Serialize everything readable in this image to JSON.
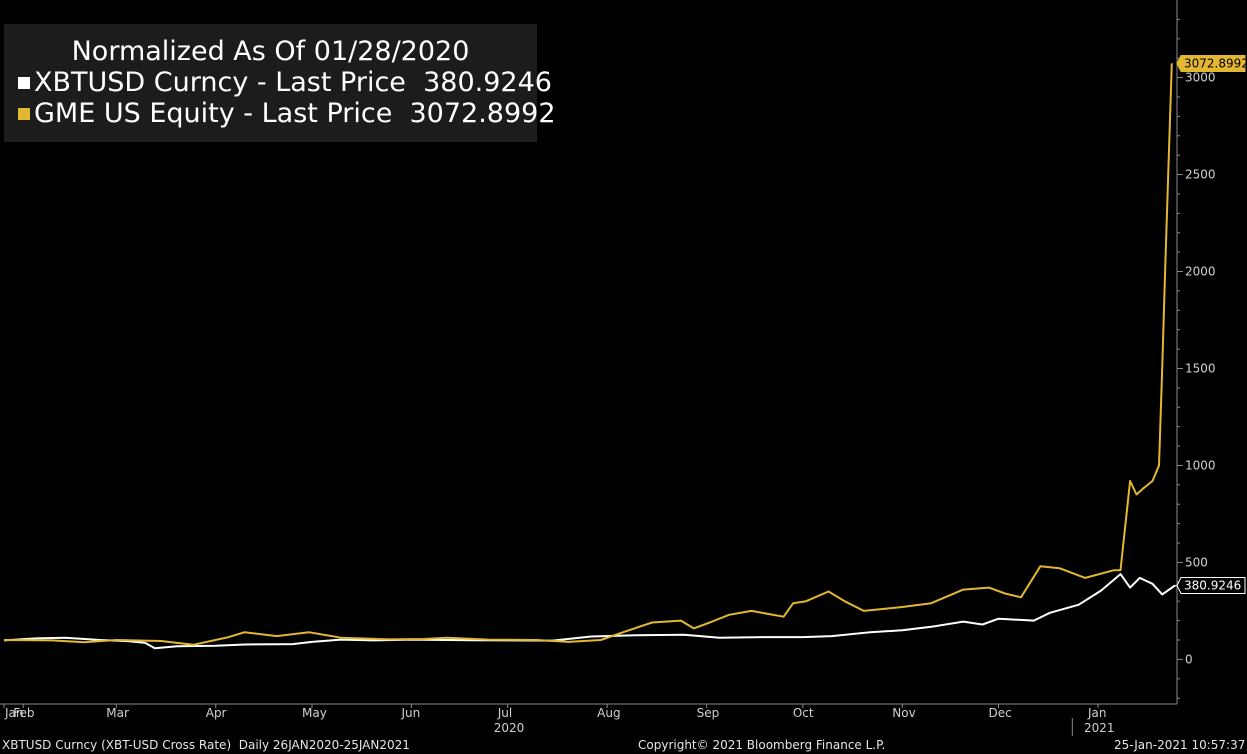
{
  "legend": {
    "title": "Normalized As Of 01/28/2020",
    "series": [
      {
        "label": "XBTUSD Curncy - Last Price",
        "value": "380.9246",
        "color": "#ffffff"
      },
      {
        "label": "GME US Equity - Last Price",
        "value": "3072.8992",
        "color": "#e3b830"
      }
    ]
  },
  "footer": {
    "left": "XBTUSD Curncy (XBT-USD Cross Rate)  Daily 26JAN2020-25JAN2021",
    "center": "Copyright© 2021 Bloomberg Finance L.P.",
    "right": "25-Jan-2021 10:57:37"
  },
  "chart_data": {
    "type": "line",
    "ylim": [
      -230,
      3400
    ],
    "xlim": [
      "2020-01-26",
      "2021-01-25"
    ],
    "yticks": [
      0,
      500,
      1000,
      1500,
      2000,
      2500,
      3000
    ],
    "months": [
      {
        "label": "Jan",
        "date": "2020-01-26"
      },
      {
        "label": "Feb",
        "date": "2020-02-01"
      },
      {
        "label": "Mar",
        "date": "2020-03-01"
      },
      {
        "label": "Apr",
        "date": "2020-04-01"
      },
      {
        "label": "May",
        "date": "2020-05-01"
      },
      {
        "label": "Jun",
        "date": "2020-06-01"
      },
      {
        "label": "Jul",
        "date": "2020-07-01"
      },
      {
        "label": "Aug",
        "date": "2020-08-01"
      },
      {
        "label": "Sep",
        "date": "2020-09-01"
      },
      {
        "label": "Oct",
        "date": "2020-10-01"
      },
      {
        "label": "Nov",
        "date": "2020-11-01"
      },
      {
        "label": "Dec",
        "date": "2020-12-01"
      },
      {
        "label": "Jan",
        "date": "2021-01-01"
      }
    ],
    "year_labels": [
      {
        "label": "2020",
        "date": "2020-07-01"
      },
      {
        "label": "2021",
        "date": "2021-01-01"
      }
    ],
    "series": [
      {
        "name": "XBTUSD Curncy - Last Price",
        "color": "#ffffff",
        "last_value": "380.9246",
        "points": [
          [
            "2020-01-26",
            98
          ],
          [
            "2020-02-05",
            108
          ],
          [
            "2020-02-14",
            112
          ],
          [
            "2020-02-25",
            100
          ],
          [
            "2020-03-05",
            94
          ],
          [
            "2020-03-10",
            85
          ],
          [
            "2020-03-13",
            57
          ],
          [
            "2020-03-20",
            68
          ],
          [
            "2020-04-01",
            70
          ],
          [
            "2020-04-10",
            77
          ],
          [
            "2020-04-25",
            79
          ],
          [
            "2020-05-01",
            90
          ],
          [
            "2020-05-10",
            102
          ],
          [
            "2020-05-20",
            98
          ],
          [
            "2020-06-01",
            102
          ],
          [
            "2020-06-20",
            99
          ],
          [
            "2020-07-01",
            98
          ],
          [
            "2020-07-15",
            97
          ],
          [
            "2020-07-27",
            118
          ],
          [
            "2020-08-10",
            124
          ],
          [
            "2020-08-25",
            127
          ],
          [
            "2020-09-05",
            112
          ],
          [
            "2020-09-20",
            115
          ],
          [
            "2020-10-01",
            115
          ],
          [
            "2020-10-10",
            120
          ],
          [
            "2020-10-22",
            140
          ],
          [
            "2020-11-01",
            150
          ],
          [
            "2020-11-10",
            168
          ],
          [
            "2020-11-20",
            195
          ],
          [
            "2020-11-26",
            180
          ],
          [
            "2020-12-01",
            210
          ],
          [
            "2020-12-12",
            200
          ],
          [
            "2020-12-17",
            240
          ],
          [
            "2020-12-26",
            282
          ],
          [
            "2021-01-02",
            355
          ],
          [
            "2021-01-08",
            440
          ],
          [
            "2021-01-11",
            370
          ],
          [
            "2021-01-14",
            420
          ],
          [
            "2021-01-18",
            390
          ],
          [
            "2021-01-21",
            335
          ],
          [
            "2021-01-25",
            380.9246
          ]
        ]
      },
      {
        "name": "GME US Equity - Last Price",
        "color": "#e3b830",
        "last_value": "3072.8992",
        "points": [
          [
            "2020-01-26",
            100
          ],
          [
            "2020-02-10",
            98
          ],
          [
            "2020-02-20",
            88
          ],
          [
            "2020-03-01",
            100
          ],
          [
            "2020-03-15",
            95
          ],
          [
            "2020-03-25",
            75
          ],
          [
            "2020-04-05",
            115
          ],
          [
            "2020-04-10",
            140
          ],
          [
            "2020-04-20",
            120
          ],
          [
            "2020-04-30",
            140
          ],
          [
            "2020-05-10",
            112
          ],
          [
            "2020-05-25",
            103
          ],
          [
            "2020-06-05",
            105
          ],
          [
            "2020-06-12",
            112
          ],
          [
            "2020-06-25",
            102
          ],
          [
            "2020-07-10",
            100
          ],
          [
            "2020-07-20",
            90
          ],
          [
            "2020-07-30",
            100
          ],
          [
            "2020-08-06",
            140
          ],
          [
            "2020-08-15",
            190
          ],
          [
            "2020-08-24",
            200
          ],
          [
            "2020-08-28",
            160
          ],
          [
            "2020-09-02",
            190
          ],
          [
            "2020-09-08",
            230
          ],
          [
            "2020-09-15",
            250
          ],
          [
            "2020-09-25",
            220
          ],
          [
            "2020-09-28",
            290
          ],
          [
            "2020-10-02",
            300
          ],
          [
            "2020-10-09",
            350
          ],
          [
            "2020-10-14",
            300
          ],
          [
            "2020-10-20",
            250
          ],
          [
            "2020-11-01",
            270
          ],
          [
            "2020-11-10",
            290
          ],
          [
            "2020-11-20",
            360
          ],
          [
            "2020-11-28",
            370
          ],
          [
            "2020-12-03",
            340
          ],
          [
            "2020-12-08",
            320
          ],
          [
            "2020-12-14",
            480
          ],
          [
            "2020-12-20",
            470
          ],
          [
            "2020-12-28",
            420
          ],
          [
            "2021-01-06",
            460
          ],
          [
            "2021-01-08",
            460
          ],
          [
            "2021-01-11",
            920
          ],
          [
            "2021-01-13",
            850
          ],
          [
            "2021-01-15",
            880
          ],
          [
            "2021-01-18",
            920
          ],
          [
            "2021-01-20",
            1000
          ],
          [
            "2021-01-21",
            1500
          ],
          [
            "2021-01-22",
            2050
          ],
          [
            "2021-01-24",
            3072.8992
          ]
        ]
      }
    ]
  }
}
